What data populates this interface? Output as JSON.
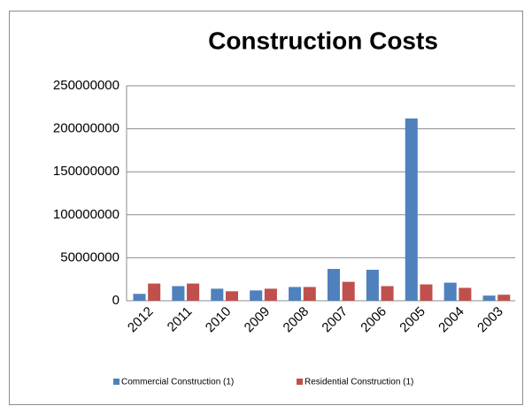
{
  "chart_data": {
    "type": "bar",
    "title": "Construction Costs",
    "categories": [
      "2012",
      "2011",
      "2010",
      "2009",
      "2008",
      "2007",
      "2006",
      "2005",
      "2004",
      "2003"
    ],
    "series": [
      {
        "name": "Commercial Construction (1)",
        "color": "#4f81bd",
        "values": [
          8000000,
          17000000,
          14000000,
          12000000,
          16000000,
          37000000,
          36000000,
          212000000,
          21000000,
          6000000
        ]
      },
      {
        "name": "Residential Construction (1)",
        "color": "#c0504d",
        "values": [
          20000000,
          20000000,
          11000000,
          14000000,
          16000000,
          22000000,
          17000000,
          19000000,
          15000000,
          7000000
        ]
      }
    ],
    "ylim": [
      0,
      250000000
    ],
    "yticks": [
      0,
      50000000,
      100000000,
      150000000,
      200000000,
      250000000
    ],
    "grid": true,
    "legend": "bottom"
  }
}
